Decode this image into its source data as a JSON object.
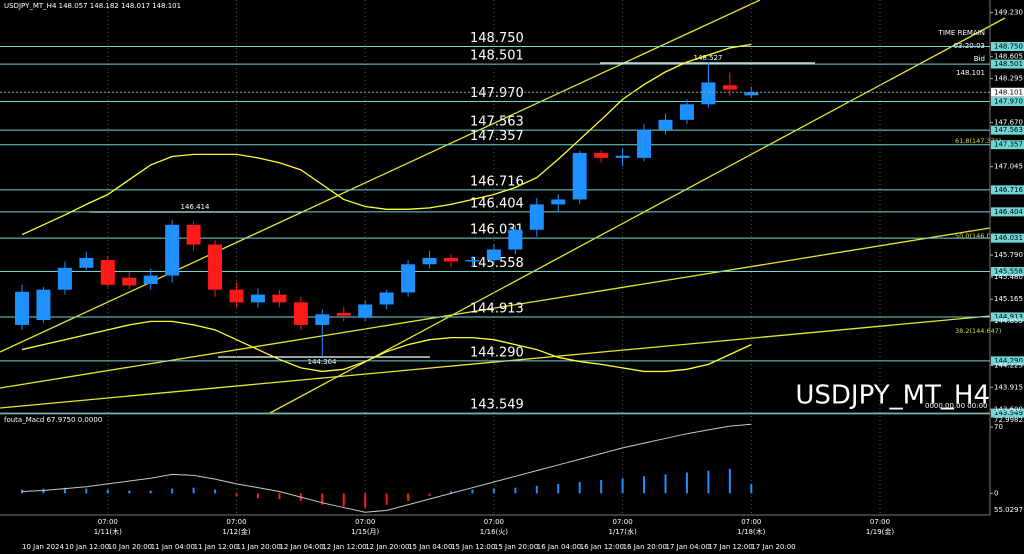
{
  "header": "USDJPY_MT_H4 148.057 148.182 148.017 148.101",
  "info": {
    "time_remain_label": "TIME REMAIN",
    "time_remain": "03:20:03",
    "bid_label": "Bid",
    "bid": "148.101"
  },
  "watermark": "USDJPY_MT_H4",
  "footer_stamp": "0000.00.00 00:00",
  "fib_labels": [
    "61.8(147.371)",
    "50.0(146.005)",
    "38.2(144.647)"
  ],
  "annotations": [
    "146.414",
    "144.364",
    "148.527"
  ],
  "chart_data": [
    {
      "type": "candlestick",
      "up_color": "#1e90ff",
      "down_color": "#ff1a1a",
      "ylim": [
        143.55,
        149.41
      ],
      "yticks": [
        {
          "value": 149.23,
          "label": "149.230"
        },
        {
          "value": 148.605,
          "label": "148.605"
        },
        {
          "value": 148.295,
          "label": "148.295"
        },
        {
          "value": 147.67,
          "label": "147.670"
        },
        {
          "value": 147.045,
          "label": "147.045"
        },
        {
          "value": 145.79,
          "label": "145.790"
        },
        {
          "value": 145.48,
          "label": "145.480"
        },
        {
          "value": 145.165,
          "label": "145.165"
        },
        {
          "value": 144.855,
          "label": "144.855"
        },
        {
          "value": 144.225,
          "label": "144.225"
        },
        {
          "value": 143.915,
          "label": "143.915"
        },
        {
          "value": 143.6,
          "label": "143.600"
        }
      ],
      "levels": [
        {
          "value": 148.75,
          "label": "148.750"
        },
        {
          "value": 148.501,
          "label": "148.501"
        },
        {
          "value": 147.97,
          "label": "147.970"
        },
        {
          "value": 147.563,
          "label": "147.563"
        },
        {
          "value": 147.357,
          "label": "147.357"
        },
        {
          "value": 146.716,
          "label": "146.716"
        },
        {
          "value": 146.404,
          "label": "146.404"
        },
        {
          "value": 146.031,
          "label": "146.031"
        },
        {
          "value": 145.558,
          "label": "145.558"
        },
        {
          "value": 144.913,
          "label": "144.913"
        },
        {
          "value": 144.29,
          "label": "144.290"
        },
        {
          "value": 143.549,
          "label": "143.549"
        }
      ],
      "level_color": "#6fd6d6",
      "x_labels": [
        "10 Jan 2024",
        "10 Jan 12:00",
        "10 Jan 20:00",
        "11 Jan 04:00",
        "11 Jan 12:00",
        "11 Jan 20:00",
        "12 Jan 04:00",
        "12 Jan 12:00",
        "12 Jan 20:00",
        "15 Jan 04:00",
        "15 Jan 12:00",
        "15 Jan 20:00",
        "16 Jan 04:00",
        "16 Jan 12:00",
        "16 Jan 20:00",
        "17 Jan 04:00",
        "17 Jan 12:00",
        "17 Jan 20:00"
      ],
      "time_markers": [
        {
          "time": "07:00",
          "date": "1/11(木)"
        },
        {
          "time": "07:00",
          "date": "1/12(金)"
        },
        {
          "time": "07:00",
          "date": "1/15(月)"
        },
        {
          "time": "07:00",
          "date": "1/16(火)"
        },
        {
          "time": "07:00",
          "date": "1/17(水)"
        },
        {
          "time": "07:00",
          "date": "1/18(木)"
        },
        {
          "time": "07:00",
          "date": "1/19(金)"
        }
      ],
      "open": [
        144.8,
        144.87,
        145.3,
        145.61,
        145.72,
        145.47,
        145.38,
        145.5,
        146.22,
        145.94,
        145.3,
        145.12,
        145.23,
        145.12,
        144.8,
        144.97,
        144.9,
        145.09,
        145.26,
        145.66,
        145.75,
        145.7,
        145.72,
        145.87,
        146.15,
        146.51,
        146.58,
        147.24,
        147.17,
        147.17,
        147.57,
        147.71,
        147.93,
        148.2,
        148.057
      ],
      "high": [
        145.37,
        145.34,
        145.7,
        145.84,
        145.78,
        145.55,
        145.6,
        146.29,
        146.27,
        146.0,
        145.4,
        145.32,
        145.3,
        145.2,
        145.02,
        145.05,
        145.15,
        145.3,
        145.72,
        145.85,
        145.8,
        145.78,
        145.95,
        146.22,
        146.6,
        146.65,
        147.27,
        147.28,
        147.3,
        147.65,
        147.8,
        148.0,
        148.53,
        148.38,
        148.182
      ],
      "low": [
        144.73,
        144.83,
        145.23,
        145.58,
        145.33,
        145.3,
        145.3,
        145.4,
        145.85,
        145.2,
        145.05,
        145.05,
        145.05,
        144.73,
        144.36,
        144.85,
        144.85,
        145.02,
        145.2,
        145.6,
        145.62,
        145.62,
        145.65,
        145.8,
        146.05,
        146.4,
        146.52,
        147.1,
        147.05,
        147.12,
        147.5,
        147.65,
        147.88,
        148.05,
        148.017
      ],
      "close": [
        145.27,
        145.3,
        145.61,
        145.75,
        145.37,
        145.36,
        145.5,
        146.22,
        145.94,
        145.3,
        145.12,
        145.23,
        145.12,
        144.8,
        144.95,
        144.93,
        145.09,
        145.26,
        145.66,
        145.75,
        145.7,
        145.72,
        145.87,
        146.15,
        146.51,
        146.58,
        147.24,
        147.17,
        147.2,
        147.57,
        147.71,
        147.93,
        148.24,
        148.14,
        148.101
      ],
      "bands": [
        {
          "color": "#ffff33",
          "values": [
            146.08,
            146.22,
            146.36,
            146.51,
            146.65,
            146.86,
            147.07,
            147.19,
            147.22,
            147.22,
            147.22,
            147.17,
            147.1,
            147.0,
            146.79,
            146.58,
            146.48,
            146.44,
            146.44,
            146.46,
            146.51,
            146.58,
            146.65,
            146.75,
            146.89,
            147.15,
            147.43,
            147.71,
            148.0,
            148.21,
            148.39,
            148.53,
            148.63,
            148.73,
            148.78
          ]
        },
        {
          "color": "#ffff33",
          "values": [
            144.45,
            144.52,
            144.59,
            144.66,
            144.73,
            144.8,
            144.85,
            144.85,
            144.8,
            144.73,
            144.59,
            144.45,
            144.31,
            144.19,
            144.14,
            144.17,
            144.28,
            144.42,
            144.52,
            144.59,
            144.62,
            144.62,
            144.59,
            144.52,
            144.45,
            144.34,
            144.28,
            144.24,
            144.19,
            144.14,
            144.14,
            144.17,
            144.24,
            144.38,
            144.52
          ]
        }
      ]
    },
    {
      "type": "macd",
      "title": "fouta_Macd 67.9750 0.0000",
      "max_label": "72.9982",
      "min_label": "55.0297",
      "ylim": [
        -21.8,
        83.8
      ],
      "yticks": [
        70,
        0
      ],
      "color": "#1e90ff",
      "negative_color": "#ff1a1a",
      "line_color": "#c8c8c8",
      "histogram": [
        4,
        5,
        6,
        5,
        4,
        3,
        3,
        5,
        6,
        4,
        -3,
        -5,
        -6,
        -8,
        -12,
        -14,
        -15,
        -12,
        -8,
        -3,
        2,
        4,
        5,
        6,
        8,
        10,
        12,
        14,
        16,
        18,
        20,
        22,
        24,
        26,
        10
      ],
      "signal": [
        2,
        3,
        5,
        7,
        10,
        13,
        16,
        20,
        19,
        15,
        10,
        6,
        2,
        -4,
        -10,
        -15,
        -20,
        -18,
        -12,
        -6,
        0,
        6,
        12,
        18,
        24,
        30,
        36,
        42,
        48,
        53,
        58,
        63,
        67,
        71,
        73
      ]
    }
  ]
}
